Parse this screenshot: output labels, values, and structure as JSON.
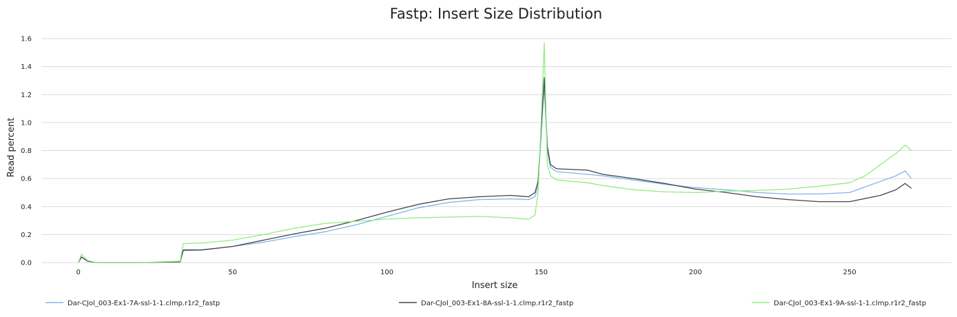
{
  "chart_data": {
    "type": "line",
    "title": "Fastp: Insert Size Distribution",
    "xlabel": "Insert size",
    "ylabel": "Read percent",
    "xlim": [
      -12,
      283
    ],
    "ylim": [
      0,
      1.6
    ],
    "x_ticks": [
      "0",
      "50",
      "100",
      "150",
      "200",
      "250"
    ],
    "y_ticks": [
      "0.0",
      "0.2",
      "0.4",
      "0.6",
      "0.8",
      "1.0",
      "1.2",
      "1.4",
      "1.6"
    ],
    "grid": "horizontal",
    "legend_position": "bottom",
    "series": [
      {
        "name": "Dar-CJol_003-Ex1-7A-ssl-1-1.clmp.r1r2_fastp",
        "color": "#7cb5ec",
        "points": [
          [
            0,
            0
          ],
          [
            1,
            0.04
          ],
          [
            3,
            0.01
          ],
          [
            6,
            0
          ],
          [
            20,
            0
          ],
          [
            33,
            0.005
          ],
          [
            34,
            0.085
          ],
          [
            40,
            0.09
          ],
          [
            50,
            0.115
          ],
          [
            60,
            0.145
          ],
          [
            70,
            0.185
          ],
          [
            80,
            0.22
          ],
          [
            90,
            0.27
          ],
          [
            100,
            0.33
          ],
          [
            110,
            0.39
          ],
          [
            120,
            0.43
          ],
          [
            130,
            0.45
          ],
          [
            140,
            0.455
          ],
          [
            146,
            0.45
          ],
          [
            148,
            0.47
          ],
          [
            149,
            0.55
          ],
          [
            150,
            0.9
          ],
          [
            151,
            1.27
          ],
          [
            152,
            0.8
          ],
          [
            153,
            0.68
          ],
          [
            155,
            0.65
          ],
          [
            160,
            0.64
          ],
          [
            165,
            0.63
          ],
          [
            170,
            0.62
          ],
          [
            180,
            0.59
          ],
          [
            190,
            0.56
          ],
          [
            200,
            0.535
          ],
          [
            210,
            0.52
          ],
          [
            220,
            0.5
          ],
          [
            230,
            0.49
          ],
          [
            240,
            0.49
          ],
          [
            250,
            0.5
          ],
          [
            260,
            0.58
          ],
          [
            265,
            0.62
          ],
          [
            268,
            0.655
          ],
          [
            270,
            0.6
          ]
        ]
      },
      {
        "name": "Dar-CJol_003-Ex1-8A-ssl-1-1.clmp.r1r2_fastp",
        "color": "#434348",
        "points": [
          [
            0,
            0
          ],
          [
            1,
            0.04
          ],
          [
            3,
            0.01
          ],
          [
            6,
            0
          ],
          [
            20,
            0
          ],
          [
            33,
            0.005
          ],
          [
            34,
            0.09
          ],
          [
            40,
            0.09
          ],
          [
            50,
            0.115
          ],
          [
            60,
            0.16
          ],
          [
            70,
            0.205
          ],
          [
            80,
            0.245
          ],
          [
            90,
            0.3
          ],
          [
            100,
            0.36
          ],
          [
            110,
            0.415
          ],
          [
            120,
            0.455
          ],
          [
            130,
            0.47
          ],
          [
            140,
            0.48
          ],
          [
            146,
            0.47
          ],
          [
            148,
            0.5
          ],
          [
            149,
            0.58
          ],
          [
            150,
            0.95
          ],
          [
            151,
            1.32
          ],
          [
            152,
            0.83
          ],
          [
            153,
            0.7
          ],
          [
            155,
            0.67
          ],
          [
            160,
            0.665
          ],
          [
            165,
            0.66
          ],
          [
            170,
            0.63
          ],
          [
            180,
            0.6
          ],
          [
            190,
            0.565
          ],
          [
            200,
            0.525
          ],
          [
            210,
            0.5
          ],
          [
            220,
            0.47
          ],
          [
            230,
            0.45
          ],
          [
            240,
            0.435
          ],
          [
            250,
            0.435
          ],
          [
            260,
            0.48
          ],
          [
            265,
            0.52
          ],
          [
            268,
            0.565
          ],
          [
            270,
            0.53
          ]
        ]
      },
      {
        "name": "Dar-CJol_003-Ex1-9A-ssl-1-1.clmp.r1r2_fastp",
        "color": "#90ed7d",
        "points": [
          [
            0,
            0
          ],
          [
            1,
            0.06
          ],
          [
            3,
            0.015
          ],
          [
            6,
            0
          ],
          [
            20,
            0
          ],
          [
            33,
            0.01
          ],
          [
            34,
            0.135
          ],
          [
            40,
            0.14
          ],
          [
            50,
            0.16
          ],
          [
            60,
            0.2
          ],
          [
            70,
            0.245
          ],
          [
            80,
            0.28
          ],
          [
            90,
            0.295
          ],
          [
            100,
            0.31
          ],
          [
            110,
            0.32
          ],
          [
            120,
            0.325
          ],
          [
            130,
            0.33
          ],
          [
            140,
            0.32
          ],
          [
            146,
            0.31
          ],
          [
            148,
            0.34
          ],
          [
            149,
            0.5
          ],
          [
            150,
            1.0
          ],
          [
            151,
            1.57
          ],
          [
            152,
            0.7
          ],
          [
            153,
            0.62
          ],
          [
            155,
            0.59
          ],
          [
            160,
            0.58
          ],
          [
            165,
            0.57
          ],
          [
            170,
            0.55
          ],
          [
            180,
            0.52
          ],
          [
            190,
            0.505
          ],
          [
            200,
            0.5
          ],
          [
            210,
            0.51
          ],
          [
            220,
            0.515
          ],
          [
            230,
            0.525
          ],
          [
            240,
            0.545
          ],
          [
            250,
            0.57
          ],
          [
            255,
            0.62
          ],
          [
            260,
            0.7
          ],
          [
            265,
            0.78
          ],
          [
            268,
            0.84
          ],
          [
            270,
            0.8
          ]
        ]
      }
    ]
  }
}
